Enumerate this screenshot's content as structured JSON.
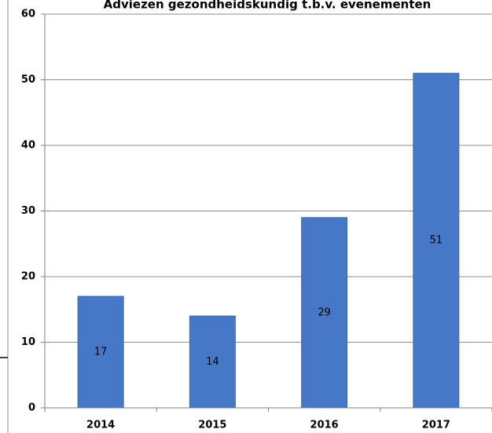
{
  "chart_data": {
    "type": "bar",
    "title": "Adviezen gezondheidskundig t.b.v. evenementen",
    "categories": [
      "2014",
      "2015",
      "2016",
      "2017"
    ],
    "values": [
      17,
      14,
      29,
      51
    ],
    "data_labels": [
      "17",
      "14",
      "29",
      "51"
    ],
    "xlabel": "",
    "ylabel": "",
    "ylim": [
      0,
      60
    ],
    "yticks": [
      0,
      10,
      20,
      30,
      40,
      50,
      60
    ],
    "grid": true,
    "legend": "none",
    "bar_color": "#4579c7"
  }
}
